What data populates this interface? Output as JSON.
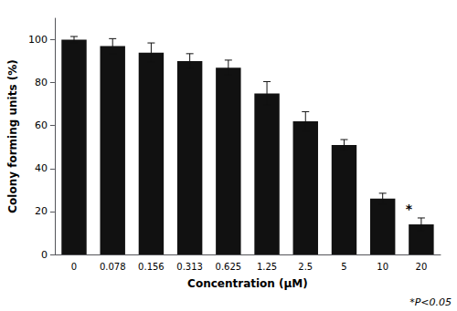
{
  "chart_data": {
    "type": "bar",
    "categories": [
      "0",
      "0.078",
      "0.156",
      "0.313",
      "0.625",
      "1.25",
      "2.5",
      "5",
      "10",
      "20"
    ],
    "values": [
      100,
      97,
      94,
      90,
      87,
      75,
      62,
      51,
      26,
      14
    ],
    "errors": [
      1.5,
      3.5,
      4.5,
      3.5,
      3.5,
      5.5,
      4.5,
      2.5,
      2.5,
      3.0
    ],
    "color": "#111111",
    "xlabel": "Concentration (μM)",
    "ylabel": "Colony forming units (%)",
    "ylim": [
      0,
      110
    ],
    "yticks": [
      0,
      20,
      40,
      60,
      80,
      100
    ],
    "grid": false,
    "star": {
      "label": "*",
      "category": "20"
    },
    "annotation": "*P<0.05"
  }
}
